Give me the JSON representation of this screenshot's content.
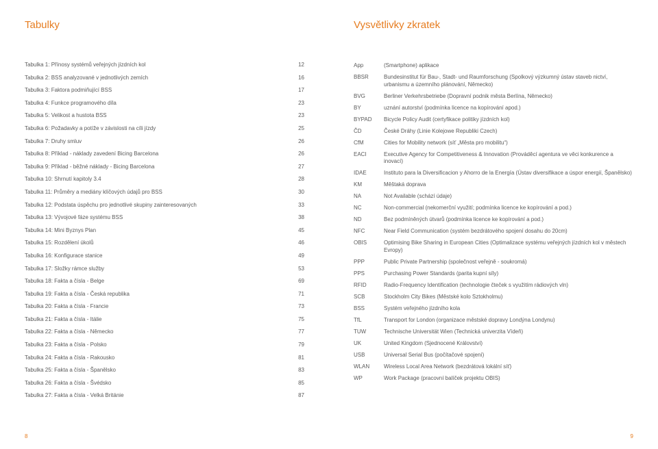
{
  "colors": {
    "accent": "#e67c1f",
    "text": "#595959",
    "background": "#ffffff"
  },
  "typography": {
    "heading_fontsize_pt": 15,
    "body_fontsize_pt": 8,
    "font_family": "Verdana"
  },
  "left": {
    "heading": "Tabulky",
    "page_number": "8",
    "rows": [
      {
        "label": "Tabulka 1: Přínosy systémů veřejných jízdních kol",
        "num": "12"
      },
      {
        "label": "Tabulka 2: BSS analyzované v jednotlivých zemích",
        "num": "16"
      },
      {
        "label": "Tabulka 3: Faktora podmiňující BSS",
        "num": "17"
      },
      {
        "label": "Tabulka 4: Funkce programového díla",
        "num": "23"
      },
      {
        "label": "Tabulka 5: Velikost a hustota BSS",
        "num": "23"
      },
      {
        "label": "Tabulka 6: Požadavky a potíže v závislosti na cíli jízdy",
        "num": "25"
      },
      {
        "label": "Tabulka 7: Druhy smluv",
        "num": "26"
      },
      {
        "label": "Tabulka 8: Příklad - náklady zavedení Bicing Barcelona",
        "num": "26"
      },
      {
        "label": "Tabulka 9: Příklad - běžné náklady - Bicing Barcelona",
        "num": "27"
      },
      {
        "label": "Tabulka 10: Shrnutí kapitoly 3.4",
        "num": "28"
      },
      {
        "label": "Tabulka 11: Průměry a mediány klíčových údajů pro BSS",
        "num": "30"
      },
      {
        "label": "Tabulka 12: Podstata úspěchu pro jednotlivé skupiny zainteresovaných",
        "num": "33"
      },
      {
        "label": "Tabulka 13: Vývojové fáze systému BSS",
        "num": "38"
      },
      {
        "label": "Tabulka 14: Mini Byznys Plan",
        "num": "45"
      },
      {
        "label": "Tabulka 15: Rozdělení úkolů",
        "num": "46"
      },
      {
        "label": "Tabulka 16: Konfigurace stanice",
        "num": "49"
      },
      {
        "label": "Tabulka 17: Složky rámce služby",
        "num": "53"
      },
      {
        "label": "Tabulka 18: Fakta a čísla - Belge",
        "num": "69"
      },
      {
        "label": "Tabulka 19: Fakta a čísla - Česká republika",
        "num": "71"
      },
      {
        "label": "Tabulka 20: Fakta a čísla - Francie",
        "num": "73"
      },
      {
        "label": "Tabulka 21: Fakta a čísla - Itálie",
        "num": "75"
      },
      {
        "label": "Tabulka 22: Fakta a čísla - Německo",
        "num": "77"
      },
      {
        "label": "Tabulka 23: Fakta a čísla - Polsko",
        "num": "79"
      },
      {
        "label": "Tabulka 24: Fakta a čísla - Rakousko",
        "num": "81"
      },
      {
        "label": "Tabulka 25: Fakta a čísla - Španělsko",
        "num": "83"
      },
      {
        "label": "Tabulka 26: Fakta a čísla - Švédsko",
        "num": "85"
      },
      {
        "label": "Tabulka 27: Fakta a čísla - Velká Británie",
        "num": "87"
      }
    ]
  },
  "right": {
    "heading": "Vysvětlivky zkratek",
    "page_number": "9",
    "rows": [
      {
        "key": "App",
        "desc": "(Smartphone) aplikace"
      },
      {
        "key": "BBSR",
        "desc": "Bundesinstitut für Bau-, Stadt- und Raumforschung (Spolkový výzkumný ústav staveb nictví, urbanismu a územního plánování, Německo)"
      },
      {
        "key": "BVG",
        "desc": "Berliner Verkehrsbetriebe (Dopravní podnik města Berlína, Německo)"
      },
      {
        "key": "BY",
        "desc": "uznání autorství (podmínka licence na kopírování apod.)"
      },
      {
        "key": "BYPAD",
        "desc": "Bicycle Policy Audit (certyfikace politiky jízdních kol)"
      },
      {
        "key": "ČD",
        "desc": "České Dráhy (Linie Kolejowe Republiki Czech)"
      },
      {
        "key": "CfM",
        "desc": "Cities for Mobility network (síť „Města pro mobilitu“)"
      },
      {
        "key": "EACI",
        "desc": "Executive Agency for Competitiveness & Innovation (Prováděcí agentura ve věci konkurence a inovací)"
      },
      {
        "key": "IDAE",
        "desc": "Instituto para la Diversificacion y Ahorro de la Energía (Ústav diversifikace a úspor energií, Španělsko)"
      },
      {
        "key": "KM",
        "desc": "Měštaká doprava"
      },
      {
        "key": "NA",
        "desc": "Not Available (schází údaje)"
      },
      {
        "key": "NC",
        "desc": "Non-commercial (nekomerční využití; podmínka licence ke kopírování a pod.)"
      },
      {
        "key": "ND",
        "desc": "Bez podmíněných útvarů (podmínka licence ke kopírování a pod.)"
      },
      {
        "key": "NFC",
        "desc": "Near Field Communication (systém bezdrátového spojení dosahu do 20cm)"
      },
      {
        "key": "OBIS",
        "desc": "Optimising Bike Sharing in European Cities (Optimalizace systému veřejných jízdních kol v městech Evropy)"
      },
      {
        "key": "PPP",
        "desc": "Public Private Partnership (společnost veřejně - soukromá)"
      },
      {
        "key": "PPS",
        "desc": "Purchasing Power Standards (parita kupní síly)"
      },
      {
        "key": "RFID",
        "desc": "Radio-Frequency Identification (technologie čteček s využitím rádiových vln)"
      },
      {
        "key": "SCB",
        "desc": "Stockholm City Bikes (Městské kolo Sztokholmu)"
      },
      {
        "key": "BSS",
        "desc": "Systém veřejného jízdního kola"
      },
      {
        "key": "TfL",
        "desc": "Transport for London (organizace městské dopravy Londýna  Londynu)"
      },
      {
        "key": "TUW",
        "desc": "Technische Universität Wien (Technická univerzita Vídeň)"
      },
      {
        "key": "UK",
        "desc": "United Kingdom (Sjednocené Království)"
      },
      {
        "key": "USB",
        "desc": "Universal Serial Bus (počítačové spojení)"
      },
      {
        "key": "WLAN",
        "desc": "Wireless Local Area Network (bezdrátová lokální síť)"
      },
      {
        "key": "WP",
        "desc": "Work Package (pracovní balíček projektu OBIS)"
      }
    ]
  }
}
